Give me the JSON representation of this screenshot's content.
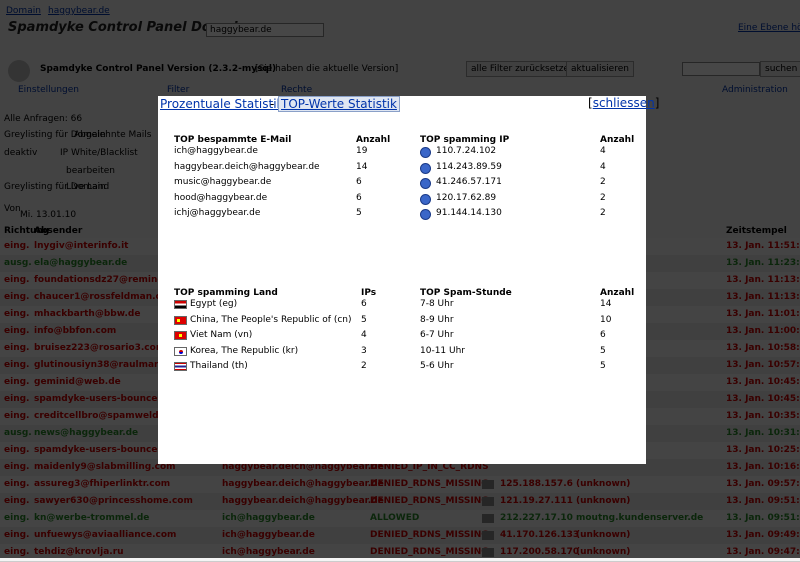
{
  "header": {
    "breadcrumb": [
      "Domain",
      "haggybear.de"
    ],
    "title": "Spamdyke Control Panel Domain",
    "domain_select": "haggybear.de",
    "up_link": "Eine Ebene höher",
    "version": "Spamdyke Control Panel Version (2.3.2-mysql)",
    "version_note": "[Sie haben die aktuelle Version]",
    "buttons": [
      "alle Filter zurücksetzen",
      "aktualisieren",
      "suchen"
    ],
    "tabs": [
      "Einstellungen",
      "Filter",
      "Rechte",
      "Administration"
    ]
  },
  "sidebar": {
    "items": [
      "Alle Anfragen: 66",
      "Abgelehnte Mails",
      "Greylisting für Domain",
      "IP White/Blacklist",
      "deaktiv",
      "bearbeiten",
      "Greylisting für Domain",
      "Live Land",
      "Von",
      "Mi. 13.01.10"
    ]
  },
  "log": {
    "columns": [
      "Richtung",
      "Absender",
      "Zeitstempel"
    ],
    "rows": [
      {
        "dir": "eing.",
        "from": "lnygiv@interinfo.it",
        "time": "13. Jan. 11:51:30"
      },
      {
        "dir": "ausg.",
        "from": "ela@haggybear.de",
        "time": "13. Jan. 11:23:40"
      },
      {
        "dir": "eing.",
        "from": "foundationsdz27@remingt",
        "time": "13. Jan. 11:13:16"
      },
      {
        "dir": "eing.",
        "from": "chaucer1@rossfeldman.co",
        "time": "13. Jan. 11:13:32"
      },
      {
        "dir": "eing.",
        "from": "mhackbarth@bbw.de",
        "time": "13. Jan. 11:01:27"
      },
      {
        "dir": "eing.",
        "from": "info@bbfon.com",
        "time": "13. Jan. 11:00:45"
      },
      {
        "dir": "eing.",
        "from": "bruisez223@rosario3.com",
        "time": "13. Jan. 10:58:24"
      },
      {
        "dir": "eing.",
        "from": "glutinousiyn38@raulmar",
        "time": "13. Jan. 10:57:26"
      },
      {
        "dir": "eing.",
        "from": "geminid@web.de",
        "time": "13. Jan. 10:45:56"
      },
      {
        "dir": "eing.",
        "from": "spamdyke-users-bounces",
        "time": "13. Jan. 10:45:29"
      },
      {
        "dir": "eing.",
        "from": "creditcellbro@spamweld",
        "time": "13. Jan. 10:35:25"
      },
      {
        "dir": "ausg.",
        "from": "news@haggybear.de",
        "time": "13. Jan. 10:31:07"
      },
      {
        "dir": "eing.",
        "from": "spamdyke-users-bounces",
        "time": "13. Jan. 10:25:15"
      },
      {
        "dir": "eing.",
        "from": "maidenly9@slabmilling.com",
        "to": "haggybear.deich@haggybear.de",
        "status": "DENIED_IP_IN_CC_RDNS",
        "time": "13. Jan. 10:16:43"
      },
      {
        "dir": "eing.",
        "from": "assureg3@fhiperlinktr.com",
        "to": "haggybear.deich@haggybear.de",
        "status": "DENIED_RDNS_MISSING",
        "ip": "125.188.157.6",
        "host": "(unknown)",
        "time": "13. Jan. 09:57:09"
      },
      {
        "dir": "eing.",
        "from": "sawyer630@princesshome.com",
        "to": "haggybear.deich@haggybear.de",
        "status": "DENIED_RDNS_MISSING",
        "ip": "121.19.27.111",
        "host": "(unknown)",
        "time": "13. Jan. 09:51:13"
      },
      {
        "dir": "eing.",
        "from": "kn@werbe-trommel.de",
        "to": "ich@haggybear.de",
        "status": "ALLOWED",
        "ip": "212.227.17.10",
        "host": "moutng.kundenserver.de",
        "time": "13. Jan. 09:51:14"
      },
      {
        "dir": "eing.",
        "from": "unfuewys@aviaalliance.com",
        "to": "ich@haggybear.de",
        "status": "DENIED_RDNS_MISSING",
        "ip": "41.170.126.133",
        "host": "(unknown)",
        "time": "13. Jan. 09:49:34"
      },
      {
        "dir": "eing.",
        "from": "tehdiz@krovlja.ru",
        "to": "ich@haggybear.de",
        "status": "DENIED_RDNS_MISSING",
        "ip": "117.200.58.170",
        "host": "(unknown)",
        "time": "13. Jan. 09:47:42"
      }
    ]
  },
  "dialog": {
    "tab_percent": "Prozentuale Statistik",
    "separator": "-",
    "tab_top": "TOP-Werte Statistik",
    "close": "schliessen",
    "emails": {
      "headers": [
        "TOP bespammte E-Mail",
        "Anzahl"
      ],
      "rows": [
        [
          "ich@haggybear.de",
          19
        ],
        [
          "haggybear.deich@haggybear.de",
          14
        ],
        [
          "music@haggybear.de",
          6
        ],
        [
          "hood@haggybear.de",
          6
        ],
        [
          "ichj@haggybear.de",
          5
        ]
      ]
    },
    "ips": {
      "headers": [
        "TOP spamming IP",
        "Anzahl"
      ],
      "rows": [
        [
          "110.7.24.102",
          4
        ],
        [
          "114.243.89.59",
          4
        ],
        [
          "41.246.57.171",
          2
        ],
        [
          "120.17.62.89",
          2
        ],
        [
          "91.144.14.130",
          2
        ]
      ]
    },
    "countries": {
      "headers": [
        "TOP spamming Land",
        "IPs"
      ],
      "rows": [
        [
          "Egypt (eg)",
          6
        ],
        [
          "China, The People's Republic of (cn)",
          5
        ],
        [
          "Viet Nam (vn)",
          4
        ],
        [
          "Korea, The Republic (kr)",
          3
        ],
        [
          "Thailand (th)",
          2
        ]
      ]
    },
    "hours": {
      "headers": [
        "TOP Spam-Stunde",
        "Anzahl"
      ],
      "rows": [
        [
          "7-8 Uhr",
          14
        ],
        [
          "8-9 Uhr",
          10
        ],
        [
          "6-7 Uhr",
          6
        ],
        [
          "10-11 Uhr",
          5
        ],
        [
          "5-6 Uhr",
          5
        ]
      ]
    }
  }
}
